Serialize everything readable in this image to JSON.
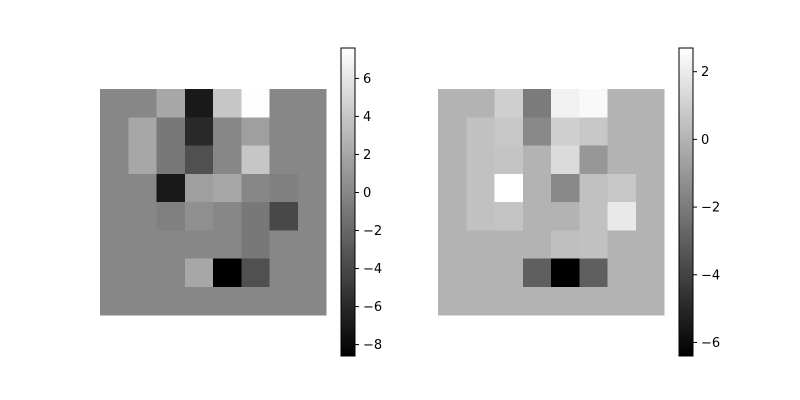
{
  "chart_data": [
    {
      "type": "heatmap",
      "colormap": "gray",
      "grid": false,
      "axes_visible": false,
      "rows": 8,
      "cols": 8,
      "values": [
        [
          0,
          0,
          2,
          -7,
          4,
          7.5,
          0,
          0
        ],
        [
          0,
          2,
          -1,
          -6,
          0,
          1.5,
          0,
          0
        ],
        [
          0,
          2,
          -1,
          -3.5,
          0,
          4,
          0,
          0
        ],
        [
          0,
          0,
          -7,
          1.5,
          2,
          0,
          -0.5,
          0
        ],
        [
          0,
          0,
          -0.5,
          0.5,
          0,
          -1,
          -4,
          0
        ],
        [
          0,
          0,
          0,
          0,
          0,
          -1,
          0,
          0
        ],
        [
          0,
          0,
          0,
          2,
          -8.6,
          -3.5,
          0,
          0
        ],
        [
          0,
          0,
          0,
          0,
          0,
          0,
          0,
          0
        ]
      ],
      "colorbar": {
        "vmin": -8.6,
        "vmax": 7.6,
        "ticks": [
          -8,
          -6,
          -4,
          -2,
          0,
          2,
          4,
          6
        ],
        "tick_labels": [
          "−8",
          "−6",
          "−4",
          "−2",
          "0",
          "2",
          "4",
          "6"
        ]
      }
    },
    {
      "type": "heatmap",
      "colormap": "gray",
      "grid": false,
      "axes_visible": false,
      "rows": 8,
      "cols": 8,
      "values": [
        [
          0,
          0,
          1,
          -2,
          2.2,
          2.5,
          0,
          0
        ],
        [
          0,
          0.5,
          0.7,
          -1.5,
          1,
          0.7,
          0,
          0
        ],
        [
          0,
          0.5,
          0.6,
          0,
          1.4,
          -1,
          0,
          0
        ],
        [
          0,
          0.5,
          2.7,
          0,
          -1.5,
          0.5,
          0.7,
          0
        ],
        [
          0,
          0.5,
          0.6,
          0,
          0,
          0.5,
          1.9,
          0
        ],
        [
          0,
          0,
          0,
          0,
          0.4,
          0.5,
          0,
          0
        ],
        [
          0,
          0,
          0,
          -3,
          -6.4,
          -3,
          0,
          0
        ],
        [
          0,
          0,
          0,
          0,
          0,
          0,
          0,
          0
        ]
      ],
      "colorbar": {
        "vmin": -6.4,
        "vmax": 2.7,
        "ticks": [
          -6,
          -4,
          -2,
          0,
          2
        ],
        "tick_labels": [
          "−6",
          "−4",
          "−2",
          "0",
          "2"
        ]
      }
    }
  ]
}
